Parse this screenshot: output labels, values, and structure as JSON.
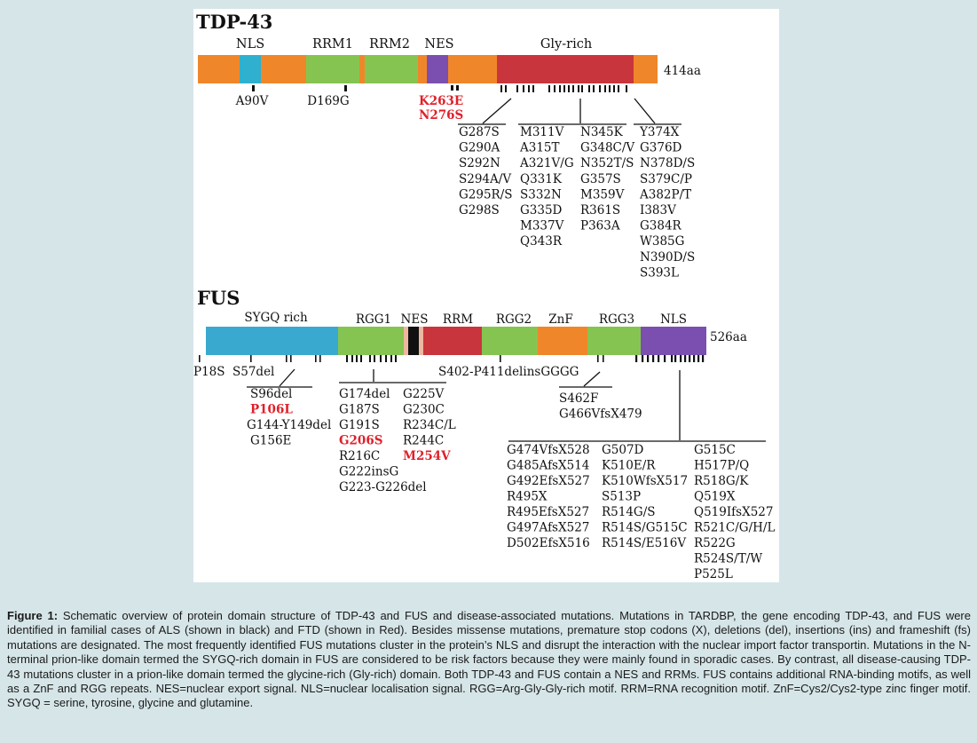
{
  "colors": {
    "linker": "#f0862a",
    "nls_tdp": "#2fb0cf",
    "rrm_green": "#86c451",
    "nes_purple": "#7b4fb0",
    "glyrich_red": "#c9353d",
    "sygq_blue": "#3aa9d0",
    "nes_fus_black": "#111111",
    "nes_fus_pink": "#efb7a0",
    "ftd_red": "#e0202a",
    "als_black": "#111111"
  },
  "tdp43": {
    "title": "TDP-43",
    "length_label": "414aa",
    "domains": [
      {
        "label": "NLS"
      },
      {
        "label": "RRM1"
      },
      {
        "label": "RRM2"
      },
      {
        "label": "NES"
      },
      {
        "label": "Gly-rich"
      }
    ],
    "mutations_single": [
      "A90V",
      "D169G"
    ],
    "mutations_red": [
      "K263E",
      "N276S"
    ],
    "columns": [
      [
        "G287S",
        "G290A",
        "S292N",
        "S294A/V",
        "G295R/S",
        "G298S"
      ],
      [
        "M311V",
        "A315T",
        "A321V/G",
        "Q331K",
        "S332N",
        "G335D",
        "M337V",
        "Q343R"
      ],
      [
        "N345K",
        "G348C/V",
        "N352T/S",
        "G357S",
        "M359V",
        "R361S",
        "P363A"
      ],
      [
        "Y374X",
        "G376D",
        "N378D/S",
        "S379C/P",
        "A382P/T",
        "I383V",
        "G384R",
        "W385G",
        "N390D/S",
        "S393L"
      ]
    ]
  },
  "fus": {
    "title": "FUS",
    "length_label": "526aa",
    "domains": [
      {
        "label": "SYGQ rich"
      },
      {
        "label": "RGG1"
      },
      {
        "label": "NES"
      },
      {
        "label": "RRM"
      },
      {
        "label": "RGG2"
      },
      {
        "label": "ZnF"
      },
      {
        "label": "RGG3"
      },
      {
        "label": "NLS"
      }
    ],
    "mutations_single": [
      "P18S",
      "S57del"
    ],
    "delins": "S402-P411delinsGGGG",
    "sygq_list": [
      {
        "t": "S96del",
        "red": false
      },
      {
        "t": "P106L",
        "red": true
      },
      {
        "t": "G144-Y149del",
        "red": false
      },
      {
        "t": "G156E",
        "red": false
      }
    ],
    "rgg1_col1": [
      {
        "t": "G174del",
        "red": false
      },
      {
        "t": "G187S",
        "red": false
      },
      {
        "t": "G191S",
        "red": false
      },
      {
        "t": "G206S",
        "red": true
      },
      {
        "t": "R216C",
        "red": false
      },
      {
        "t": "G222insG",
        "red": false
      },
      {
        "t": "G223-G226del",
        "red": false
      }
    ],
    "rgg1_col2": [
      {
        "t": "G225V",
        "red": false
      },
      {
        "t": "G230C",
        "red": false
      },
      {
        "t": "R234C/L",
        "red": false
      },
      {
        "t": "R244C",
        "red": false
      },
      {
        "t": "M254V",
        "red": true
      }
    ],
    "rgg3_list": [
      "S462F",
      "G466VfsX479"
    ],
    "nls_col1": [
      "G474VfsX528",
      "G485AfsX514",
      "G492EfsX527",
      "R495X",
      "R495EfsX527",
      "G497AfsX527",
      "D502EfsX516"
    ],
    "nls_col2": [
      "G507D",
      "K510E/R",
      "K510WfsX517",
      "S513P",
      "R514G/S",
      "R514S/G515C",
      "R514S/E516V"
    ],
    "nls_col3": [
      "G515C",
      "H517P/Q",
      "R518G/K",
      "Q519X",
      "Q519IfsX527",
      "R521C/G/H/L",
      "R522G",
      "R524S/T/W",
      "P525L"
    ]
  },
  "caption": {
    "label": "Figure 1:",
    "text": " Schematic overview of protein domain structure of TDP-43 and FUS and disease-associated mutations. Mutations in TARDBP, the gene encoding TDP-43, and FUS were identified in familial cases of ALS (shown in black) and FTD (shown in Red). Besides missense mutations, premature stop codons (X), deletions (del), insertions (ins) and frameshift (fs) mutations are designated. The most frequently identified FUS mutations cluster in the protein’s NLS and disrupt the interaction with the nuclear import factor transportin. Mutations in the N-terminal prion-like domain termed the SYGQ-rich domain in FUS are considered to be risk factors because they were mainly found in sporadic cases. By contrast, all disease-causing TDP-43 mutations cluster in a prion-like domain termed the glycine-rich (Gly-rich) domain. Both TDP-43 and FUS contain a NES and RRMs. FUS contains additional RNA-binding motifs, as well as a ZnF and RGG repeats. NES=nuclear export signal. NLS=nuclear localisation signal. RGG=Arg-Gly-Gly-rich motif. RRM=RNA recognition motif. ZnF=Cys2/Cys2-type zinc finger motif. SYGQ = serine, tyrosine, glycine and glutamine."
  }
}
